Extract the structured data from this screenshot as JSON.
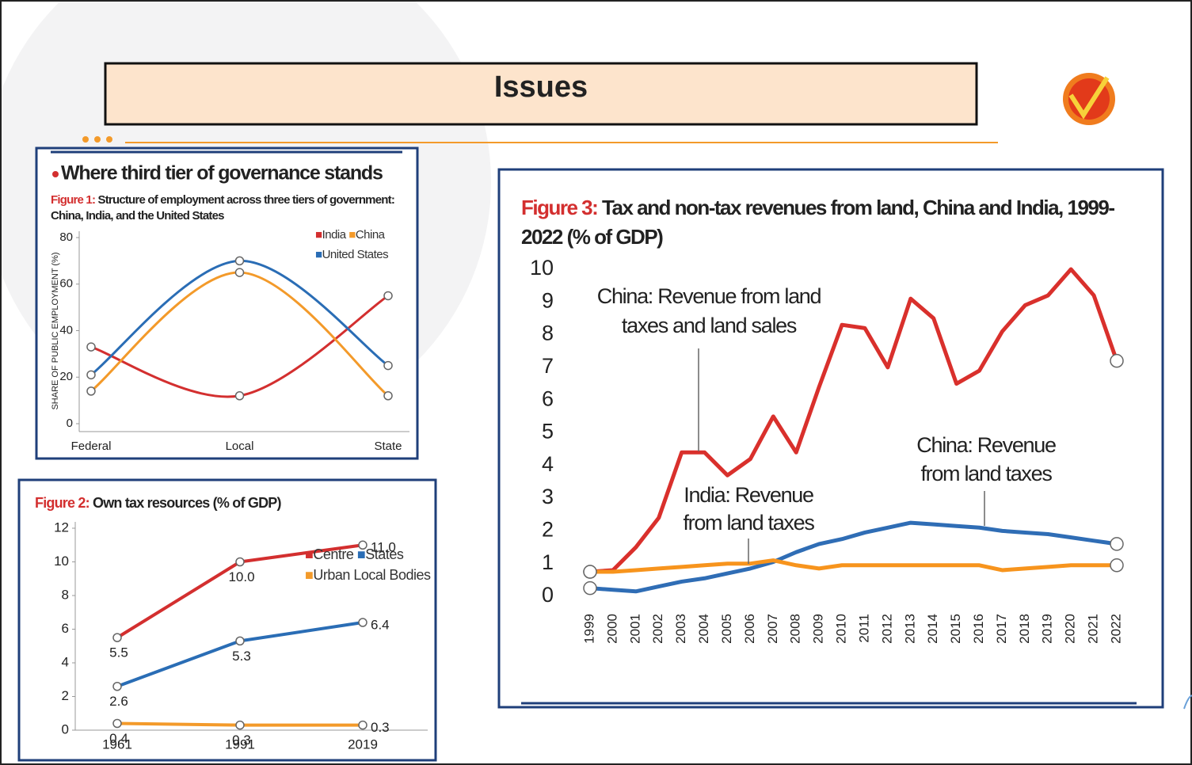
{
  "header": {
    "title": "Issues"
  },
  "chart_data": [
    {
      "type": "line",
      "smooth": true,
      "markers": "all",
      "heading": "Where third tier of governance stands",
      "figure_label": "Figure 1:",
      "title": [
        "Structure of employment across three tiers of government:",
        "China, India, and the United States"
      ],
      "y_label": "SHARE OF PUBLIC EMPLOYMENT (%)",
      "categories": [
        "Federal",
        "Local",
        "State"
      ],
      "ylim": [
        0,
        80
      ],
      "yticks": [
        0,
        20,
        40,
        60,
        80
      ],
      "legend": "top right",
      "series": [
        {
          "name": "India",
          "color": "#d32f2f",
          "values": [
            33,
            12,
            55
          ]
        },
        {
          "name": "China",
          "color": "#f39a2a",
          "values": [
            14,
            65,
            12
          ]
        },
        {
          "name": "United States",
          "color": "#2a6db5",
          "values": [
            21,
            70,
            25
          ]
        }
      ]
    },
    {
      "type": "line",
      "smooth": false,
      "markers": "all",
      "figure_label": "Figure 2:",
      "title": [
        "Own tax resources (% of GDP)"
      ],
      "categories": [
        "1961",
        "1991",
        "2019"
      ],
      "ylim": [
        0,
        12
      ],
      "yticks": [
        0,
        2,
        4,
        6,
        8,
        10,
        12
      ],
      "legend": "top right",
      "series": [
        {
          "name": "Centre",
          "color": "#d32f2f",
          "values": [
            5.5,
            10.0,
            11.0
          ],
          "value_labels": [
            "5.5",
            "10.0",
            "11.0"
          ]
        },
        {
          "name": "States",
          "color": "#2a6db5",
          "values": [
            2.6,
            5.3,
            6.4
          ],
          "value_labels": [
            "2.6",
            "5.3",
            "6.4"
          ]
        },
        {
          "name": "Urban Local Bodies",
          "color": "#f39a2a",
          "values": [
            0.4,
            0.3,
            0.3
          ],
          "value_labels": [
            "0.4",
            "0.3",
            "0.3"
          ]
        }
      ]
    },
    {
      "type": "line",
      "smooth": false,
      "markers": "ends",
      "figure_label": "Figure 3:",
      "title": [
        "Tax and non-tax revenues from land, China and India, 1999-",
        "2022 (% of GDP)"
      ],
      "categories": [
        "1999",
        "2000",
        "2001",
        "2002",
        "2003",
        "2004",
        "2005",
        "2006",
        "2007",
        "2008",
        "2009",
        "2010",
        "2011",
        "2012",
        "2013",
        "2014",
        "2015",
        "2016",
        "2017",
        "2018",
        "2019",
        "2020",
        "2021",
        "2022"
      ],
      "ylim": [
        0,
        10
      ],
      "yticks": [
        0,
        1,
        2,
        3,
        4,
        5,
        6,
        7,
        8,
        9,
        10
      ],
      "series": [
        {
          "color": "#d9302c",
          "values": [
            0.75,
            0.8,
            1.5,
            2.4,
            4.4,
            4.4,
            3.7,
            4.2,
            5.5,
            4.4,
            6.4,
            8.3,
            8.2,
            7.0,
            9.1,
            8.5,
            6.5,
            6.9,
            8.1,
            8.9,
            9.2,
            10.0,
            9.2,
            7.2
          ]
        },
        {
          "color": "#2f6db5",
          "values": [
            0.25,
            0.2,
            0.15,
            0.3,
            0.45,
            0.55,
            0.7,
            0.85,
            1.05,
            1.35,
            1.6,
            1.75,
            1.95,
            2.1,
            2.25,
            2.2,
            2.15,
            2.1,
            2.0,
            1.95,
            1.9,
            1.8,
            1.7,
            1.6
          ]
        },
        {
          "color": "#f7941d",
          "values": [
            0.75,
            0.75,
            0.8,
            0.85,
            0.9,
            0.95,
            1.0,
            1.0,
            1.1,
            0.95,
            0.85,
            0.95,
            0.95,
            0.95,
            0.95,
            0.95,
            0.95,
            0.95,
            0.8,
            0.85,
            0.9,
            0.95,
            0.95,
            0.95
          ]
        }
      ],
      "annotations": [
        {
          "text": [
            "China: Revenue from land",
            "taxes and land sales"
          ]
        },
        {
          "text": [
            "India: Revenue",
            "from land taxes"
          ]
        },
        {
          "text": [
            "China: Revenue",
            "from land taxes"
          ]
        }
      ]
    }
  ]
}
